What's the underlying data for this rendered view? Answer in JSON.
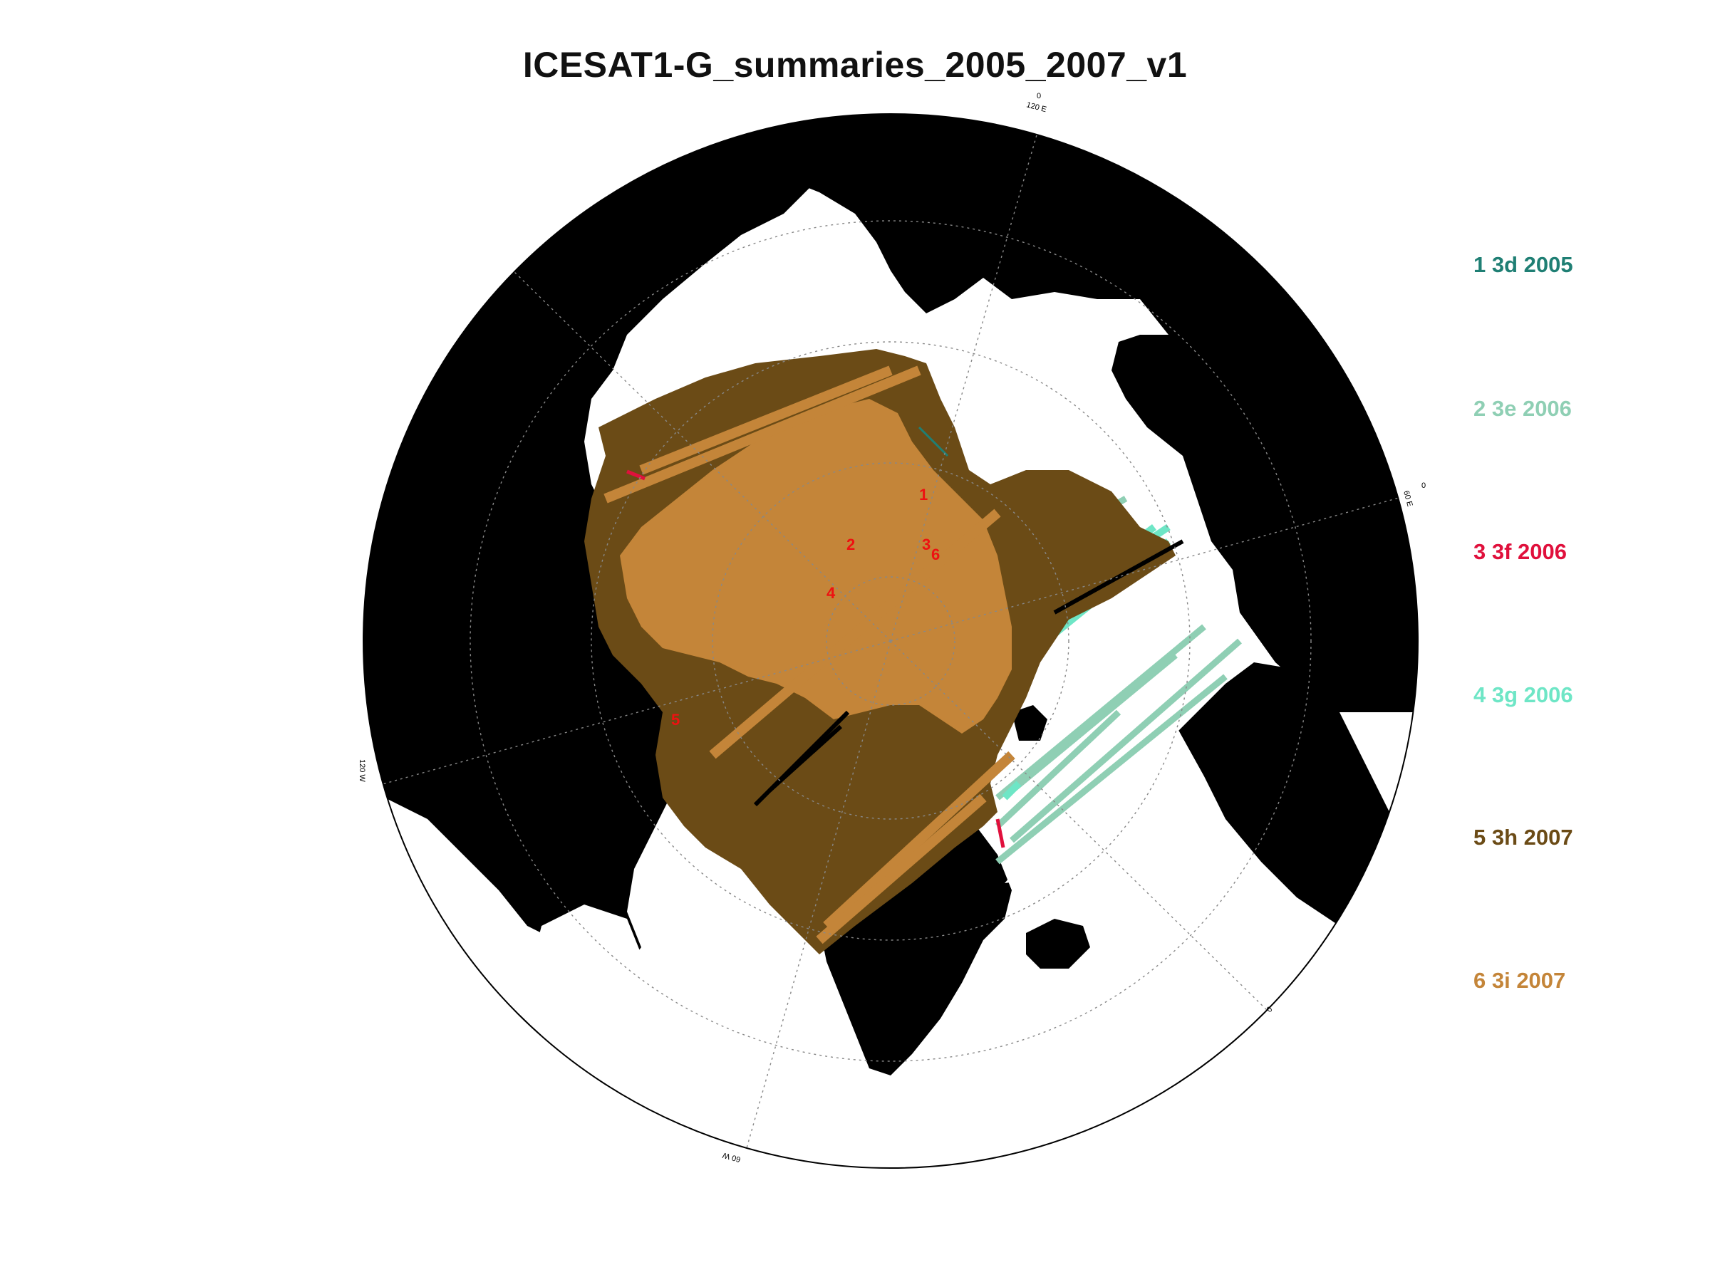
{
  "title": "ICESAT1-G_summaries_2005_2007_v1",
  "legend": [
    {
      "num": "1",
      "campaign": "3d",
      "year": "2005",
      "label": "1 3d 2005",
      "color": "#1f7f74"
    },
    {
      "num": "2",
      "campaign": "3e",
      "year": "2006",
      "label": "2 3e 2006",
      "color": "#8fcfb4"
    },
    {
      "num": "3",
      "campaign": "3f",
      "year": "2006",
      "label": "3 3f 2006",
      "color": "#e0103c"
    },
    {
      "num": "4",
      "campaign": "3g",
      "year": "2006",
      "label": "4 3g 2006",
      "color": "#6ee6c6"
    },
    {
      "num": "5",
      "campaign": "3h",
      "year": "2007",
      "label": "5 3h 2007",
      "color": "#6b4b16"
    },
    {
      "num": "6",
      "campaign": "3i",
      "year": "2007",
      "label": "6 3i 2007",
      "color": "#c48539"
    }
  ],
  "map_labels": [
    "1",
    "2",
    "3",
    "4",
    "5",
    "6"
  ],
  "graticule_labels": [
    "120 E",
    "60 N",
    "120 W",
    "60 E",
    "0",
    "60 W",
    "0",
    "0"
  ],
  "colors": {
    "land": "#000000",
    "ocean": "#ffffff",
    "marker": "#ee1111"
  }
}
